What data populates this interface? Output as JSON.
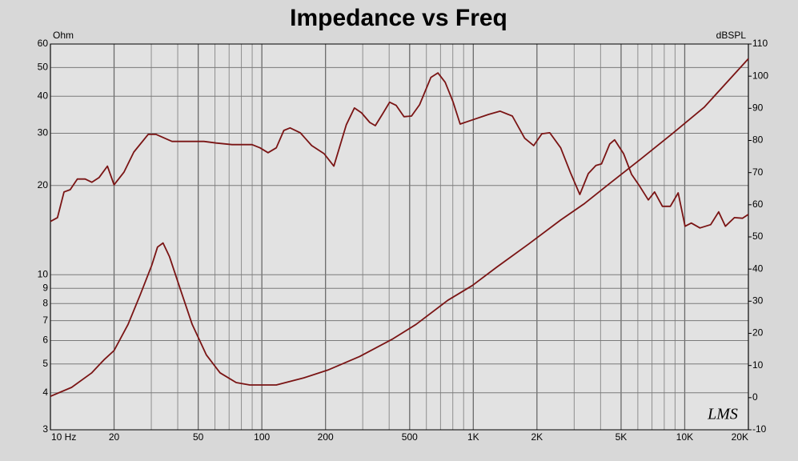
{
  "chart_data": {
    "type": "line",
    "title": "Impedance vs Freq",
    "y_label": "Ohm",
    "y2_label": "dBSPL",
    "watermark": "LMS",
    "log_x": true,
    "log_y": true,
    "grid": true,
    "xlim": [
      10,
      20000
    ],
    "xticks": [
      {
        "value": 10,
        "label": "10 Hz"
      },
      20,
      50,
      100,
      200,
      500,
      {
        "value": 1000,
        "label": "1K"
      },
      {
        "value": 2000,
        "label": "2K"
      },
      {
        "value": 5000,
        "label": "5K"
      },
      {
        "value": 10000,
        "label": "10K"
      },
      {
        "value": 20000,
        "label": "20K"
      }
    ],
    "xgrid_minor": [
      30,
      40,
      60,
      70,
      80,
      90,
      300,
      400,
      600,
      700,
      800,
      900,
      3000,
      4000,
      6000,
      7000,
      8000,
      9000
    ],
    "ylim": [
      3,
      60
    ],
    "yticks": [
      3,
      4,
      5,
      6,
      7,
      8,
      9,
      10,
      20,
      30,
      40,
      50,
      60
    ],
    "y2lim": [
      -10,
      110
    ],
    "y2ticks": [
      -10,
      0,
      10,
      20,
      30,
      40,
      50,
      60,
      70,
      80,
      90,
      100,
      110
    ],
    "series": [
      {
        "color": "#7a1414",
        "axis": "y",
        "x": [
          10,
          12.6,
          15.7,
          17.9,
          20,
          23.3,
          26.6,
          30.2,
          32.1,
          34.1,
          36.6,
          41,
          46.8,
          54.7,
          63.4,
          75.6,
          87.6,
          117,
          158,
          205,
          290,
          412,
          536,
          758,
          990,
          1290,
          1830,
          2590,
          3360,
          4370,
          6170,
          8730,
          12350,
          20000
        ],
        "values": [
          3.89,
          4.17,
          4.67,
          5.16,
          5.55,
          6.8,
          8.56,
          10.8,
          12.4,
          12.8,
          11.5,
          9.0,
          6.8,
          5.36,
          4.67,
          4.33,
          4.25,
          4.25,
          4.49,
          4.77,
          5.3,
          6.05,
          6.8,
          8.2,
          9.2,
          10.6,
          12.7,
          15.3,
          17.4,
          20.2,
          24.5,
          29.9,
          36.7,
          53.5
        ]
      },
      {
        "color": "#7a1414",
        "axis": "y2",
        "x": [
          10,
          10.8,
          11.6,
          12.4,
          13.4,
          14.6,
          15.7,
          17,
          18.6,
          20,
          22.3,
          24.8,
          29,
          31.6,
          37.6,
          44.7,
          53.2,
          60.8,
          72.3,
          89.9,
          98,
          107,
          117,
          127,
          136,
          152,
          172,
          197,
          219,
          251,
          274,
          296,
          324,
          344,
          371,
          402,
          432,
          470,
          510,
          557,
          630,
          680,
          736,
          801,
          867,
          990,
          1180,
          1340,
          1530,
          1750,
          1930,
          2110,
          2300,
          2590,
          2880,
          3190,
          3500,
          3800,
          4040,
          4420,
          4660,
          5140,
          5600,
          6090,
          6730,
          7200,
          7840,
          8550,
          9310,
          10040,
          10740,
          11800,
          13270,
          14480,
          15570,
          17190,
          18750,
          20000
        ],
        "values": [
          54.8,
          56,
          64,
          64.7,
          68,
          68,
          67,
          68.5,
          72,
          66.2,
          70.2,
          76.4,
          81.9,
          81.9,
          79.7,
          79.7,
          79.7,
          79.2,
          78.7,
          78.7,
          77.7,
          76.2,
          77.7,
          83.1,
          83.9,
          82.4,
          78.4,
          75.9,
          72,
          84.9,
          90.1,
          88.6,
          85.6,
          84.6,
          88.1,
          91.9,
          90.9,
          87.4,
          87.6,
          91.1,
          99.6,
          101,
          98.1,
          92.1,
          85.1,
          86.4,
          88.1,
          89.1,
          87.6,
          80.7,
          78.4,
          82.1,
          82.4,
          77.7,
          70,
          63.2,
          69.7,
          72.2,
          72.7,
          78.9,
          80.2,
          75.9,
          69.5,
          66,
          61.5,
          64,
          59.5,
          59.5,
          63.7,
          53.3,
          54.3,
          52.8,
          53.8,
          57.8,
          53.3,
          56,
          55.8,
          57
        ]
      }
    ]
  }
}
